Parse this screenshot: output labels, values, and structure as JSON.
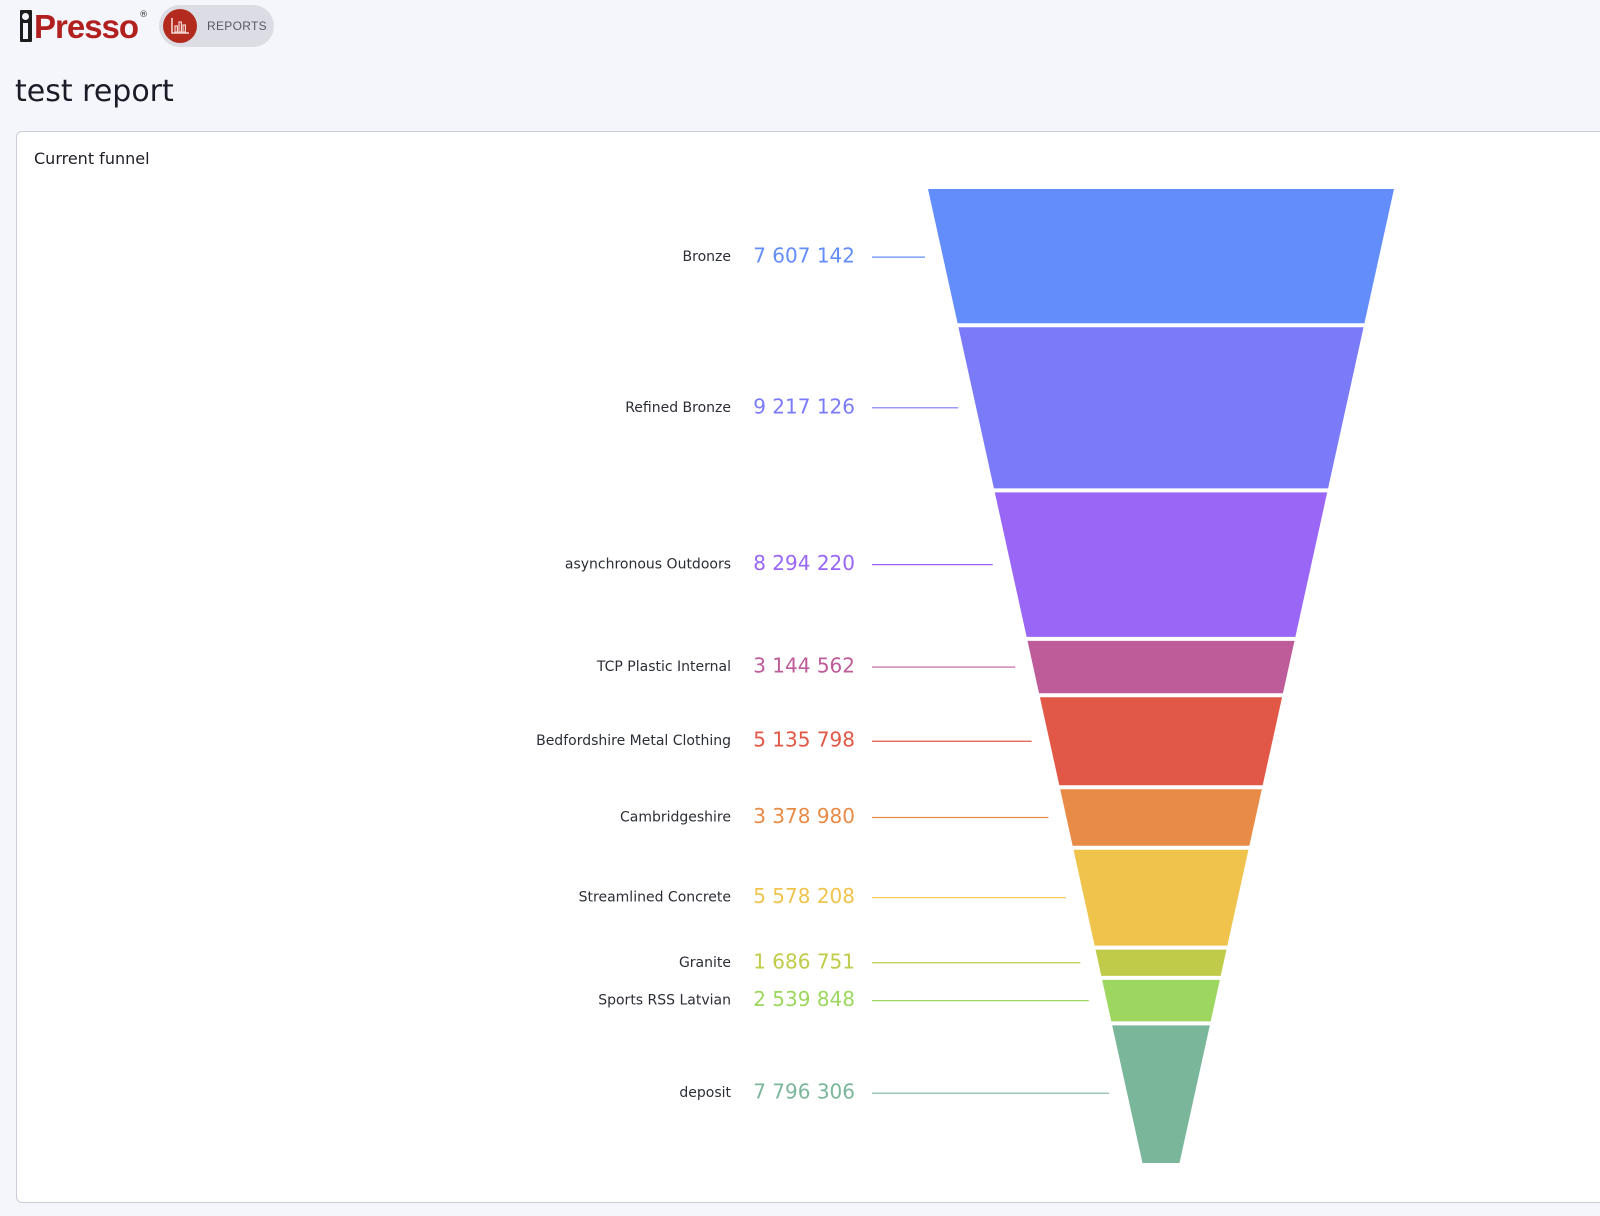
{
  "header": {
    "logo_text": "Presso",
    "logo_trademark": "®",
    "reports_label": "REPORTS",
    "reports_icon": "bar-chart-icon"
  },
  "page": {
    "title": "test report"
  },
  "card": {
    "title": "Current funnel"
  },
  "chart_data": {
    "type": "funnel",
    "title": "Current funnel",
    "stages": [
      {
        "label": "Bronze",
        "value": 7607142,
        "value_text": "7 607 142",
        "color": "#648dfc"
      },
      {
        "label": "Refined Bronze",
        "value": 9217126,
        "value_text": "9 217 126",
        "color": "#7b7af9"
      },
      {
        "label": "asynchronous Outdoors",
        "value": 8294220,
        "value_text": "8 294 220",
        "color": "#9966f5"
      },
      {
        "label": "TCP Plastic Internal",
        "value": 3144562,
        "value_text": "3 144 562",
        "color": "#bd5c99"
      },
      {
        "label": "Bedfordshire Metal Clothing",
        "value": 5135798,
        "value_text": "5 135 798",
        "color": "#e25847"
      },
      {
        "label": "Cambridgeshire",
        "value": 3378980,
        "value_text": "3 378 980",
        "color": "#e78b46"
      },
      {
        "label": "Streamlined Concrete",
        "value": 5578208,
        "value_text": "5 578 208",
        "color": "#f0c44c"
      },
      {
        "label": "Granite",
        "value": 1686751,
        "value_text": "1 686 751",
        "color": "#c0cc49"
      },
      {
        "label": "Sports RSS Latvian",
        "value": 2539848,
        "value_text": "2 539 848",
        "color": "#9dd75f"
      },
      {
        "label": "deposit",
        "value": 7796306,
        "value_text": "7 796 306",
        "color": "#7ab79a"
      }
    ]
  }
}
